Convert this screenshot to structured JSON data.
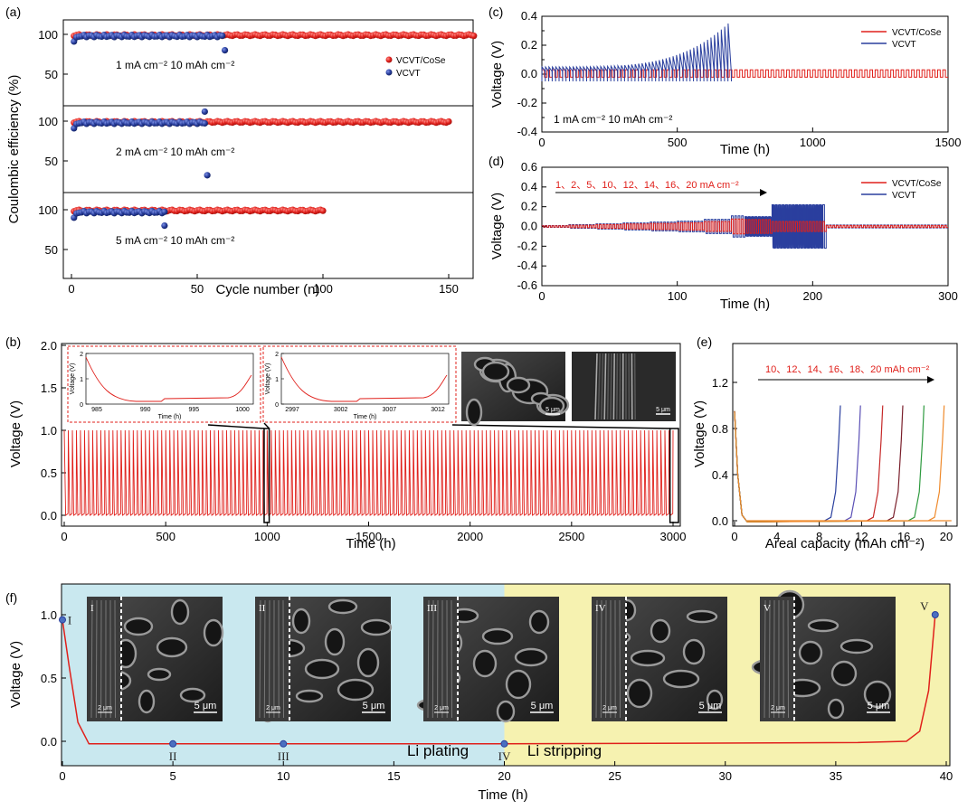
{
  "colors": {
    "red": "#e0201b",
    "blue": "#2a3f9e",
    "plating_bg": "#c9e8ef",
    "stripping_bg": "#f6f2b0"
  },
  "chart_data": [
    {
      "panel": "(a)",
      "type": "scatter",
      "xlabel": "Cycle number (n)",
      "ylabel": "Coulombic efficiency (%)",
      "xticks": [
        "0",
        "50",
        "100",
        "150"
      ],
      "yticks": [
        "100",
        "50"
      ],
      "legend": [
        "VCVT/CoSe",
        "VCVT"
      ],
      "subpanels": [
        {
          "note": "1 mA cm⁻²   10 mAh cm⁻²",
          "series": [
            {
              "name": "VCVT/CoSe",
              "cycles": 160,
              "ce": 99
            },
            {
              "name": "VCVT",
              "cycles": 60,
              "ce": 98,
              "outlier": [
                61,
                80
              ]
            }
          ]
        },
        {
          "note": "2 mA cm⁻²   10 mAh cm⁻²",
          "series": [
            {
              "name": "VCVT/CoSe",
              "cycles": 150,
              "ce": 99
            },
            {
              "name": "VCVT",
              "cycles": 53,
              "ce": 98,
              "outliers": [
                [
                  53,
                  112
                ],
                [
                  54,
                  32
                ]
              ]
            }
          ]
        },
        {
          "note": "5 mA cm⁻²   10 mAh cm⁻²",
          "series": [
            {
              "name": "VCVT/CoSe",
              "cycles": 100,
              "ce": 99
            },
            {
              "name": "VCVT",
              "cycles": 37,
              "ce": 97,
              "outlier": [
                37,
                80
              ]
            }
          ]
        }
      ]
    },
    {
      "panel": "(c)",
      "type": "line",
      "xlabel": "Time (h)",
      "ylabel": "Voltage (V)",
      "xticks": [
        "0",
        "500",
        "1000",
        "1500"
      ],
      "yticks": [
        "0.4",
        "0.3",
        "0.2",
        "0.1",
        "0.0",
        "-0.1",
        "-0.2",
        "-0.3",
        "-0.4"
      ],
      "xlim": [
        0,
        1500
      ],
      "ylim": [
        -0.4,
        0.4
      ],
      "note": "1 mA cm⁻²   10 mAh cm⁻²",
      "series": [
        {
          "name": "VCVT/CoSe",
          "end_h": 1500,
          "amp": 0.03
        },
        {
          "name": "VCVT",
          "end_h": 700,
          "amp_start": 0.05,
          "amp_end": 0.35
        }
      ]
    },
    {
      "panel": "(d)",
      "type": "line",
      "xlabel": "Time (h)",
      "ylabel": "Voltage (V)",
      "xticks": [
        "0",
        "100",
        "200",
        "300"
      ],
      "yticks": [
        "0.6",
        "0.4",
        "0.2",
        "0.0",
        "-0.2",
        "-0.4",
        "-0.6"
      ],
      "xlim": [
        0,
        300
      ],
      "ylim": [
        -0.6,
        0.6
      ],
      "rates": "1、2、5、10、12、14、16、20 mA cm⁻²",
      "series": [
        {
          "name": "VCVT/CoSe"
        },
        {
          "name": "VCVT"
        }
      ]
    },
    {
      "panel": "(b)",
      "type": "line",
      "xlabel": "Time (h)",
      "ylabel": "Voltage (V)",
      "xticks": [
        "0",
        "500",
        "1000",
        "1500",
        "2000",
        "2500",
        "3000"
      ],
      "yticks": [
        "2.0",
        "1.5",
        "1.0",
        "0.5",
        "0.0"
      ],
      "xlim": [
        0,
        3000
      ],
      "ylim": [
        0,
        2.0
      ],
      "series": [
        {
          "name": "VCVT/CoSe",
          "v_low": 0.0,
          "v_high": 1.0,
          "period_h": 20
        }
      ],
      "insets": [
        {
          "ylabel": "Voltage (V)",
          "xlabel": "Time (h)",
          "xticks": [
            "985",
            "990",
            "995",
            "1000"
          ],
          "yticks": [
            "2",
            "1",
            "0"
          ]
        },
        {
          "ylabel": "Voltage (V)",
          "xlabel": "Time (h)",
          "xticks": [
            "2997",
            "3002",
            "3007",
            "3012"
          ],
          "yticks": [
            "2",
            "1",
            "0"
          ]
        }
      ],
      "sem_scale": [
        "5 μm",
        "5 μm"
      ]
    },
    {
      "panel": "(e)",
      "type": "line",
      "xlabel": "Areal capacity (mAh cm⁻²)",
      "ylabel": "Voltage (V)",
      "xticks": [
        "0",
        "4",
        "8",
        "12",
        "16",
        "20"
      ],
      "yticks": [
        "1.2",
        "0.8",
        "0.4",
        "0.0"
      ],
      "xlim": [
        0,
        21
      ],
      "ylim": [
        -0.05,
        1.45
      ],
      "rates": "10、12、14、16、18、20 mAh cm⁻²",
      "series": [
        {
          "name": "10",
          "end_cap": 10.0,
          "color": "#2a3f9e"
        },
        {
          "name": "12",
          "end_cap": 11.9,
          "color": "#5a4fb5"
        },
        {
          "name": "14",
          "end_cap": 14.0,
          "color": "#c62828"
        },
        {
          "name": "16",
          "end_cap": 15.9,
          "color": "#7a1f2b"
        },
        {
          "name": "18",
          "end_cap": 17.9,
          "color": "#2e9a3f"
        },
        {
          "name": "20",
          "end_cap": 19.8,
          "color": "#ef8a2c"
        }
      ]
    },
    {
      "panel": "(f)",
      "type": "line",
      "xlabel": "Time (h)",
      "ylabel": "Voltage (V)",
      "xticks": [
        "0",
        "5",
        "10",
        "15",
        "20",
        "25",
        "30",
        "35",
        "40"
      ],
      "yticks": [
        "1.0",
        "0.5",
        "0.0"
      ],
      "xlim": [
        0,
        40
      ],
      "ylim": [
        -0.22,
        1.15
      ],
      "regions": [
        "Li plating",
        "Li stripping"
      ],
      "points": [
        {
          "label": "I",
          "x": 0,
          "y": 0.96
        },
        {
          "label": "II",
          "x": 5,
          "y": -0.02
        },
        {
          "label": "III",
          "x": 10,
          "y": -0.02
        },
        {
          "label": "IV",
          "x": 20,
          "y": -0.02
        },
        {
          "label": "V",
          "x": 39.5,
          "y": 1.0
        }
      ],
      "sem": [
        {
          "label": "I",
          "scale": "5 μm",
          "scale_small": "2 μm"
        },
        {
          "label": "II",
          "scale": "5 μm",
          "scale_small": "2 μm"
        },
        {
          "label": "III",
          "scale": "5 μm",
          "scale_small": "2 μm"
        },
        {
          "label": "IV",
          "scale": "5 μm",
          "scale_small": "2 μm"
        },
        {
          "label": "V",
          "scale": "5 μm",
          "scale_small": "2 μm"
        }
      ]
    }
  ]
}
